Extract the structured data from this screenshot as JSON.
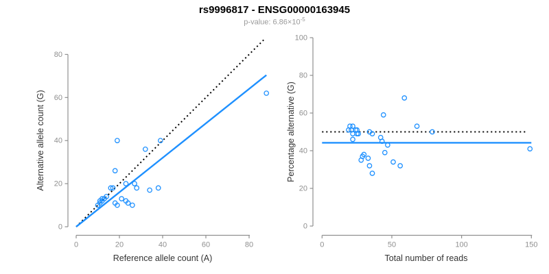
{
  "header": {
    "title": "rs9996817 - ENSG00000163945",
    "pvalue_prefix": "p-value: 6.86×10",
    "pvalue_exponent": "-5"
  },
  "colors": {
    "points": "#1E90FF",
    "fit_line": "#1E90FF",
    "reference_line": "#000000",
    "axis": "#8f8f8f",
    "tick_text": "#8f8f8f",
    "axis_title_text": "#333333"
  },
  "chart_data": [
    {
      "type": "scatter",
      "xlabel": "Reference allele count (A)",
      "ylabel": "Alternative allele count (G)",
      "xlim": [
        0,
        80
      ],
      "ylim": [
        0,
        80
      ],
      "xticks": [
        0,
        20,
        40,
        60,
        80
      ],
      "yticks": [
        0,
        20,
        40,
        60,
        80
      ],
      "grid": false,
      "legend": "none",
      "point_color": "#1E90FF",
      "points": [
        [
          10,
          10
        ],
        [
          11,
          11
        ],
        [
          11,
          12
        ],
        [
          12,
          12
        ],
        [
          12,
          13
        ],
        [
          13,
          13
        ],
        [
          14,
          14
        ],
        [
          16,
          18
        ],
        [
          17,
          18
        ],
        [
          18,
          11
        ],
        [
          19,
          10
        ],
        [
          21,
          13
        ],
        [
          23,
          12
        ],
        [
          24,
          11
        ],
        [
          26,
          10
        ],
        [
          23,
          20
        ],
        [
          27,
          20
        ],
        [
          28,
          18
        ],
        [
          34,
          17
        ],
        [
          38,
          18
        ],
        [
          18,
          26
        ],
        [
          19,
          40
        ],
        [
          32,
          36
        ],
        [
          39,
          40
        ],
        [
          88,
          62
        ]
      ],
      "lines": [
        {
          "name": "identity-dotted",
          "style": "dotted",
          "color": "#000000",
          "x": [
            0,
            87.5
          ],
          "y": [
            0,
            87.5
          ]
        },
        {
          "name": "regression-fit",
          "style": "solid",
          "color": "#1E90FF",
          "x": [
            0,
            88
          ],
          "y": [
            0,
            70.4
          ]
        }
      ]
    },
    {
      "type": "scatter",
      "xlabel": "Total number of reads",
      "ylabel": "Percentage alternative (G)",
      "xlim": [
        0,
        150
      ],
      "ylim": [
        0,
        100
      ],
      "xticks": [
        0,
        50,
        100,
        150
      ],
      "yticks": [
        0,
        20,
        40,
        60,
        80,
        100
      ],
      "grid": false,
      "legend": "none",
      "point_color": "#1E90FF",
      "points": [
        [
          20,
          53
        ],
        [
          22,
          53
        ],
        [
          19,
          51
        ],
        [
          21,
          51
        ],
        [
          24,
          51
        ],
        [
          25,
          51
        ],
        [
          22,
          49
        ],
        [
          25,
          49
        ],
        [
          26,
          49
        ],
        [
          22,
          46
        ],
        [
          34,
          50
        ],
        [
          36,
          49
        ],
        [
          42,
          47
        ],
        [
          43,
          45
        ],
        [
          44,
          59
        ],
        [
          45,
          39
        ],
        [
          47,
          43
        ],
        [
          28,
          35
        ],
        [
          29,
          37
        ],
        [
          30,
          38
        ],
        [
          33,
          36
        ],
        [
          34,
          32
        ],
        [
          36,
          28
        ],
        [
          51,
          34
        ],
        [
          56,
          32
        ],
        [
          59,
          68
        ],
        [
          68,
          53
        ],
        [
          79,
          50
        ],
        [
          149,
          41
        ]
      ],
      "lines": [
        {
          "name": "expected-50pct-dotted",
          "style": "dotted",
          "color": "#000000",
          "x": [
            0,
            147
          ],
          "y": [
            50,
            50
          ]
        },
        {
          "name": "mean-percentage-fit",
          "style": "solid",
          "color": "#1E90FF",
          "x": [
            0,
            150
          ],
          "y": [
            44.2,
            44.2
          ]
        }
      ]
    }
  ]
}
